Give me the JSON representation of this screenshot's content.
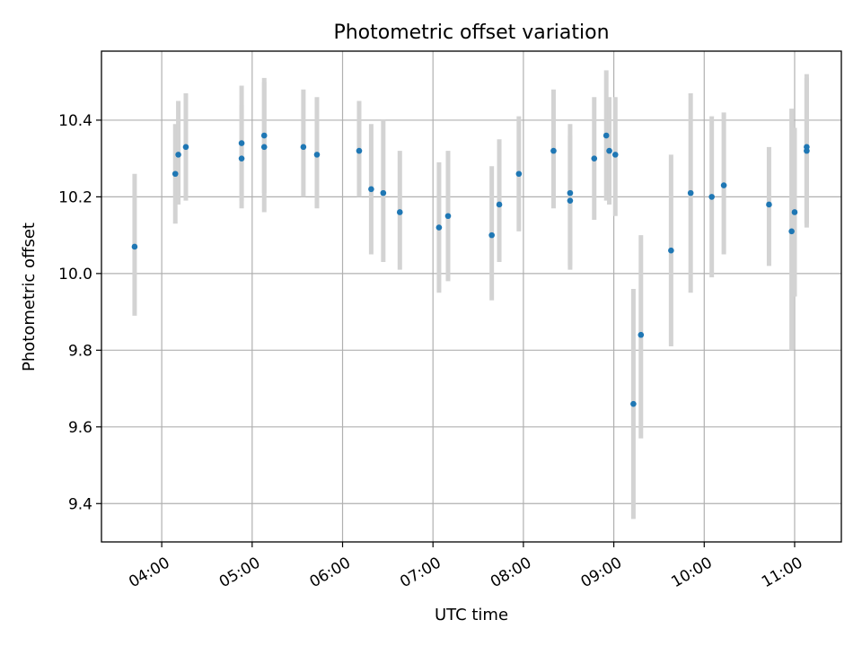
{
  "chart_data": {
    "type": "scatter",
    "title": "Photometric offset variation",
    "xlabel": "UTC time",
    "ylabel": "Photometric offset",
    "x_range": [
      "03:20",
      "11:31"
    ],
    "ylim": [
      9.3,
      10.58
    ],
    "grid": true,
    "x_ticks": [
      "04:00",
      "05:00",
      "06:00",
      "07:00",
      "08:00",
      "09:00",
      "10:00",
      "11:00"
    ],
    "y_ticks": [
      "9.4",
      "9.6",
      "9.8",
      "10.0",
      "10.2",
      "10.4"
    ],
    "marker_color": "#1f77b4",
    "errorbar_color": "#d3d3d3",
    "points": [
      {
        "t": "03:42",
        "y": 10.07,
        "lo": 9.89,
        "hi": 10.26
      },
      {
        "t": "04:09",
        "y": 10.26,
        "lo": 10.13,
        "hi": 10.39
      },
      {
        "t": "04:11",
        "y": 10.31,
        "lo": 10.18,
        "hi": 10.45
      },
      {
        "t": "04:16",
        "y": 10.33,
        "lo": 10.19,
        "hi": 10.47
      },
      {
        "t": "04:53",
        "y": 10.3,
        "lo": 10.17,
        "hi": 10.44
      },
      {
        "t": "04:53",
        "y": 10.34,
        "lo": 10.19,
        "hi": 10.49
      },
      {
        "t": "05:08",
        "y": 10.36,
        "lo": 10.21,
        "hi": 10.51
      },
      {
        "t": "05:08",
        "y": 10.33,
        "lo": 10.16,
        "hi": 10.5
      },
      {
        "t": "05:34",
        "y": 10.33,
        "lo": 10.2,
        "hi": 10.48
      },
      {
        "t": "05:43",
        "y": 10.31,
        "lo": 10.17,
        "hi": 10.46
      },
      {
        "t": "06:11",
        "y": 10.32,
        "lo": 10.2,
        "hi": 10.45
      },
      {
        "t": "06:19",
        "y": 10.22,
        "lo": 10.05,
        "hi": 10.39
      },
      {
        "t": "06:27",
        "y": 10.21,
        "lo": 10.03,
        "hi": 10.4
      },
      {
        "t": "06:38",
        "y": 10.16,
        "lo": 10.01,
        "hi": 10.32
      },
      {
        "t": "07:04",
        "y": 10.12,
        "lo": 9.95,
        "hi": 10.29
      },
      {
        "t": "07:10",
        "y": 10.15,
        "lo": 9.98,
        "hi": 10.32
      },
      {
        "t": "07:39",
        "y": 10.1,
        "lo": 9.93,
        "hi": 10.28
      },
      {
        "t": "07:44",
        "y": 10.18,
        "lo": 10.03,
        "hi": 10.35
      },
      {
        "t": "07:57",
        "y": 10.26,
        "lo": 10.11,
        "hi": 10.41
      },
      {
        "t": "08:20",
        "y": 10.32,
        "lo": 10.17,
        "hi": 10.48
      },
      {
        "t": "08:31",
        "y": 10.21,
        "lo": 10.02,
        "hi": 10.39
      },
      {
        "t": "08:31",
        "y": 10.19,
        "lo": 10.01,
        "hi": 10.36
      },
      {
        "t": "08:47",
        "y": 10.3,
        "lo": 10.14,
        "hi": 10.46
      },
      {
        "t": "08:55",
        "y": 10.36,
        "lo": 10.19,
        "hi": 10.53
      },
      {
        "t": "08:57",
        "y": 10.32,
        "lo": 10.18,
        "hi": 10.46
      },
      {
        "t": "09:01",
        "y": 10.31,
        "lo": 10.15,
        "hi": 10.46
      },
      {
        "t": "09:13",
        "y": 9.66,
        "lo": 9.36,
        "hi": 9.96
      },
      {
        "t": "09:18",
        "y": 9.84,
        "lo": 9.57,
        "hi": 10.1
      },
      {
        "t": "09:38",
        "y": 10.06,
        "lo": 9.81,
        "hi": 10.31
      },
      {
        "t": "09:51",
        "y": 10.21,
        "lo": 9.95,
        "hi": 10.47
      },
      {
        "t": "10:05",
        "y": 10.2,
        "lo": 9.99,
        "hi": 10.41
      },
      {
        "t": "10:13",
        "y": 10.23,
        "lo": 10.05,
        "hi": 10.42
      },
      {
        "t": "10:43",
        "y": 10.18,
        "lo": 10.02,
        "hi": 10.33
      },
      {
        "t": "10:58",
        "y": 10.11,
        "lo": 9.8,
        "hi": 10.43
      },
      {
        "t": "11:00",
        "y": 10.16,
        "lo": 9.94,
        "hi": 10.38
      },
      {
        "t": "11:08",
        "y": 10.33,
        "lo": 10.13,
        "hi": 10.52
      },
      {
        "t": "11:08",
        "y": 10.32,
        "lo": 10.12,
        "hi": 10.51
      }
    ]
  }
}
